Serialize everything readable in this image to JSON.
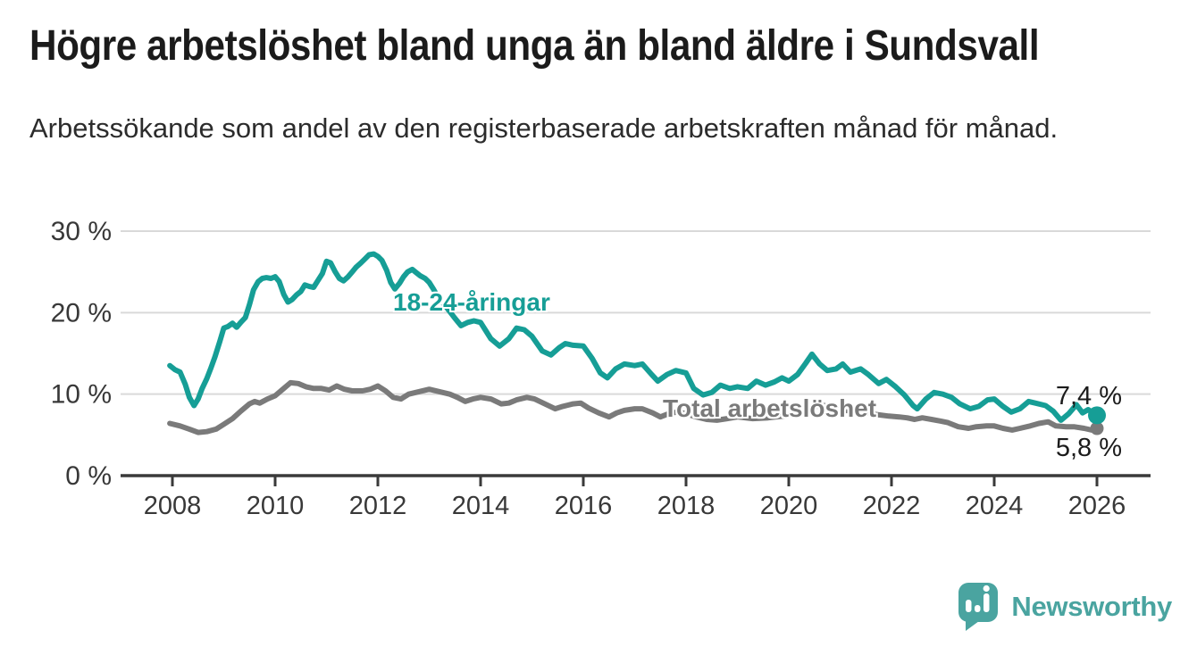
{
  "header": {
    "title": "Högre arbetslöshet bland unga än bland äldre i Sundsvall",
    "subtitle": "Arbetssökande som andel av den registerbaserade arbetskraften månad för månad."
  },
  "chart_data": {
    "type": "line",
    "title": "Högre arbetslöshet bland unga än bland äldre i Sundsvall",
    "subtitle": "Arbetssökande som andel av den registerbaserade arbetskraften månad för månad.",
    "xlabel": "",
    "ylabel": "",
    "unit": "%",
    "xlim": [
      2007.0,
      2027.0
    ],
    "ylim": [
      0,
      30
    ],
    "grid": "horizontal",
    "legend_position": "inline-labels",
    "x_ticks": [
      2008,
      2010,
      2012,
      2014,
      2016,
      2018,
      2020,
      2022,
      2024,
      2026
    ],
    "x_tick_labels": [
      "2008",
      "2010",
      "2012",
      "2014",
      "2016",
      "2018",
      "2020",
      "2022",
      "2024",
      "2026"
    ],
    "y_ticks": [
      0,
      10,
      20,
      30
    ],
    "y_tick_labels": [
      "0 %",
      "10 %",
      "20 %",
      "30 %"
    ],
    "colors": {
      "grid": "#d9d9d9",
      "axis": "#3a3a3a",
      "tick_text": "#383838",
      "value_text": "#1b1b1b"
    },
    "series": [
      {
        "name": "18-24-åringar",
        "color": "#169e96",
        "end_label": "7,4 %",
        "last_value": 7.4,
        "end_dot_radius": 10,
        "points": [
          [
            2007.95,
            13.5
          ],
          [
            2008.05,
            13.0
          ],
          [
            2008.15,
            12.7
          ],
          [
            2008.25,
            11.2
          ],
          [
            2008.33,
            9.6
          ],
          [
            2008.42,
            8.6
          ],
          [
            2008.5,
            9.4
          ],
          [
            2008.58,
            10.7
          ],
          [
            2008.67,
            11.9
          ],
          [
            2008.75,
            13.2
          ],
          [
            2008.83,
            14.6
          ],
          [
            2008.92,
            16.4
          ],
          [
            2009.0,
            18.1
          ],
          [
            2009.08,
            18.3
          ],
          [
            2009.17,
            18.7
          ],
          [
            2009.25,
            18.2
          ],
          [
            2009.33,
            18.8
          ],
          [
            2009.42,
            19.4
          ],
          [
            2009.5,
            21.0
          ],
          [
            2009.58,
            22.8
          ],
          [
            2009.67,
            23.8
          ],
          [
            2009.75,
            24.2
          ],
          [
            2009.83,
            24.3
          ],
          [
            2009.92,
            24.2
          ],
          [
            2010.0,
            24.4
          ],
          [
            2010.08,
            23.8
          ],
          [
            2010.17,
            22.2
          ],
          [
            2010.25,
            21.3
          ],
          [
            2010.33,
            21.6
          ],
          [
            2010.42,
            22.2
          ],
          [
            2010.5,
            22.6
          ],
          [
            2010.58,
            23.4
          ],
          [
            2010.67,
            23.2
          ],
          [
            2010.75,
            23.1
          ],
          [
            2010.83,
            23.9
          ],
          [
            2010.92,
            24.8
          ],
          [
            2011.0,
            26.3
          ],
          [
            2011.08,
            26.1
          ],
          [
            2011.17,
            25.0
          ],
          [
            2011.25,
            24.2
          ],
          [
            2011.33,
            23.9
          ],
          [
            2011.42,
            24.4
          ],
          [
            2011.5,
            25.0
          ],
          [
            2011.58,
            25.6
          ],
          [
            2011.67,
            26.1
          ],
          [
            2011.75,
            26.6
          ],
          [
            2011.83,
            27.1
          ],
          [
            2011.92,
            27.2
          ],
          [
            2012.0,
            26.9
          ],
          [
            2012.08,
            26.4
          ],
          [
            2012.17,
            25.2
          ],
          [
            2012.25,
            23.7
          ],
          [
            2012.33,
            22.9
          ],
          [
            2012.42,
            23.6
          ],
          [
            2012.5,
            24.4
          ],
          [
            2012.58,
            25.0
          ],
          [
            2012.67,
            25.3
          ],
          [
            2012.75,
            24.9
          ],
          [
            2012.83,
            24.5
          ],
          [
            2012.92,
            24.2
          ],
          [
            2013.0,
            23.7
          ],
          [
            2013.08,
            22.9
          ],
          [
            2013.17,
            21.9
          ],
          [
            2013.33,
            20.7
          ],
          [
            2013.5,
            19.3
          ],
          [
            2013.62,
            18.4
          ],
          [
            2013.75,
            18.8
          ],
          [
            2013.87,
            19.0
          ],
          [
            2014.0,
            18.8
          ],
          [
            2014.1,
            17.8
          ],
          [
            2014.2,
            16.8
          ],
          [
            2014.37,
            15.9
          ],
          [
            2014.55,
            16.8
          ],
          [
            2014.7,
            18.1
          ],
          [
            2014.85,
            17.9
          ],
          [
            2015.0,
            17.1
          ],
          [
            2015.2,
            15.3
          ],
          [
            2015.37,
            14.8
          ],
          [
            2015.53,
            15.7
          ],
          [
            2015.65,
            16.2
          ],
          [
            2015.8,
            16.0
          ],
          [
            2016.0,
            15.9
          ],
          [
            2016.17,
            14.4
          ],
          [
            2016.33,
            12.6
          ],
          [
            2016.47,
            12.0
          ],
          [
            2016.63,
            13.1
          ],
          [
            2016.8,
            13.7
          ],
          [
            2017.0,
            13.5
          ],
          [
            2017.15,
            13.7
          ],
          [
            2017.33,
            12.4
          ],
          [
            2017.45,
            11.6
          ],
          [
            2017.63,
            12.4
          ],
          [
            2017.8,
            12.9
          ],
          [
            2018.0,
            12.6
          ],
          [
            2018.15,
            10.7
          ],
          [
            2018.33,
            9.9
          ],
          [
            2018.5,
            10.2
          ],
          [
            2018.67,
            11.1
          ],
          [
            2018.85,
            10.7
          ],
          [
            2019.0,
            10.9
          ],
          [
            2019.2,
            10.7
          ],
          [
            2019.37,
            11.6
          ],
          [
            2019.55,
            11.1
          ],
          [
            2019.72,
            11.5
          ],
          [
            2019.87,
            12.0
          ],
          [
            2020.0,
            11.6
          ],
          [
            2020.17,
            12.4
          ],
          [
            2020.33,
            13.8
          ],
          [
            2020.45,
            14.9
          ],
          [
            2020.6,
            13.7
          ],
          [
            2020.75,
            12.9
          ],
          [
            2020.92,
            13.1
          ],
          [
            2021.05,
            13.7
          ],
          [
            2021.2,
            12.7
          ],
          [
            2021.4,
            13.1
          ],
          [
            2021.55,
            12.4
          ],
          [
            2021.75,
            11.3
          ],
          [
            2021.9,
            11.8
          ],
          [
            2022.08,
            10.9
          ],
          [
            2022.25,
            9.9
          ],
          [
            2022.42,
            8.6
          ],
          [
            2022.5,
            8.2
          ],
          [
            2022.67,
            9.4
          ],
          [
            2022.83,
            10.2
          ],
          [
            2023.0,
            10.0
          ],
          [
            2023.17,
            9.6
          ],
          [
            2023.33,
            8.8
          ],
          [
            2023.53,
            8.2
          ],
          [
            2023.7,
            8.5
          ],
          [
            2023.87,
            9.3
          ],
          [
            2024.0,
            9.4
          ],
          [
            2024.17,
            8.5
          ],
          [
            2024.33,
            7.8
          ],
          [
            2024.5,
            8.2
          ],
          [
            2024.67,
            9.1
          ],
          [
            2024.8,
            8.9
          ],
          [
            2025.0,
            8.6
          ],
          [
            2025.15,
            7.9
          ],
          [
            2025.3,
            6.8
          ],
          [
            2025.45,
            7.6
          ],
          [
            2025.6,
            8.7
          ],
          [
            2025.72,
            7.7
          ],
          [
            2025.83,
            8.1
          ],
          [
            2026.0,
            7.4
          ]
        ]
      },
      {
        "name": "Total arbetslöshet",
        "color": "#7a7a7a",
        "end_label": "5,8 %",
        "last_value": 5.8,
        "end_dot_radius": 7.5,
        "points": [
          [
            2007.95,
            6.4
          ],
          [
            2008.15,
            6.1
          ],
          [
            2008.33,
            5.7
          ],
          [
            2008.5,
            5.3
          ],
          [
            2008.67,
            5.4
          ],
          [
            2008.85,
            5.7
          ],
          [
            2009.0,
            6.3
          ],
          [
            2009.17,
            7.0
          ],
          [
            2009.33,
            7.9
          ],
          [
            2009.5,
            8.8
          ],
          [
            2009.6,
            9.1
          ],
          [
            2009.7,
            8.9
          ],
          [
            2009.85,
            9.4
          ],
          [
            2010.0,
            9.8
          ],
          [
            2010.15,
            10.6
          ],
          [
            2010.3,
            11.4
          ],
          [
            2010.45,
            11.3
          ],
          [
            2010.6,
            10.9
          ],
          [
            2010.75,
            10.7
          ],
          [
            2010.9,
            10.7
          ],
          [
            2011.05,
            10.5
          ],
          [
            2011.2,
            11.0
          ],
          [
            2011.35,
            10.6
          ],
          [
            2011.5,
            10.4
          ],
          [
            2011.7,
            10.4
          ],
          [
            2011.85,
            10.6
          ],
          [
            2012.0,
            11.0
          ],
          [
            2012.15,
            10.4
          ],
          [
            2012.3,
            9.6
          ],
          [
            2012.45,
            9.4
          ],
          [
            2012.6,
            10.0
          ],
          [
            2012.8,
            10.3
          ],
          [
            2013.0,
            10.6
          ],
          [
            2013.2,
            10.3
          ],
          [
            2013.4,
            10.0
          ],
          [
            2013.55,
            9.6
          ],
          [
            2013.7,
            9.1
          ],
          [
            2013.85,
            9.4
          ],
          [
            2014.0,
            9.6
          ],
          [
            2014.2,
            9.4
          ],
          [
            2014.4,
            8.8
          ],
          [
            2014.55,
            8.9
          ],
          [
            2014.7,
            9.3
          ],
          [
            2014.9,
            9.6
          ],
          [
            2015.05,
            9.4
          ],
          [
            2015.25,
            8.8
          ],
          [
            2015.45,
            8.2
          ],
          [
            2015.6,
            8.5
          ],
          [
            2015.8,
            8.8
          ],
          [
            2015.95,
            8.9
          ],
          [
            2016.1,
            8.3
          ],
          [
            2016.3,
            7.7
          ],
          [
            2016.5,
            7.2
          ],
          [
            2016.65,
            7.7
          ],
          [
            2016.8,
            8.0
          ],
          [
            2017.0,
            8.2
          ],
          [
            2017.15,
            8.2
          ],
          [
            2017.35,
            7.7
          ],
          [
            2017.5,
            7.2
          ],
          [
            2017.7,
            7.7
          ],
          [
            2017.85,
            7.8
          ],
          [
            2018.0,
            7.6
          ],
          [
            2018.2,
            7.2
          ],
          [
            2018.4,
            6.9
          ],
          [
            2018.6,
            6.8
          ],
          [
            2018.8,
            7.0
          ],
          [
            2019.0,
            7.2
          ],
          [
            2019.3,
            7.0
          ],
          [
            2019.6,
            7.1
          ],
          [
            2019.9,
            7.3
          ],
          [
            2020.2,
            7.8
          ],
          [
            2020.5,
            8.5
          ],
          [
            2020.7,
            8.6
          ],
          [
            2020.9,
            8.3
          ],
          [
            2021.1,
            8.0
          ],
          [
            2021.4,
            7.8
          ],
          [
            2021.7,
            7.5
          ],
          [
            2021.95,
            7.3
          ],
          [
            2022.15,
            7.2
          ],
          [
            2022.3,
            7.1
          ],
          [
            2022.45,
            6.9
          ],
          [
            2022.6,
            7.1
          ],
          [
            2022.78,
            6.9
          ],
          [
            2022.95,
            6.7
          ],
          [
            2023.1,
            6.5
          ],
          [
            2023.3,
            6.0
          ],
          [
            2023.5,
            5.8
          ],
          [
            2023.65,
            6.0
          ],
          [
            2023.85,
            6.1
          ],
          [
            2024.0,
            6.1
          ],
          [
            2024.17,
            5.8
          ],
          [
            2024.35,
            5.6
          ],
          [
            2024.5,
            5.8
          ],
          [
            2024.7,
            6.1
          ],
          [
            2024.87,
            6.4
          ],
          [
            2025.05,
            6.6
          ],
          [
            2025.2,
            6.1
          ],
          [
            2025.4,
            6.0
          ],
          [
            2025.55,
            6.0
          ],
          [
            2025.75,
            5.8
          ],
          [
            2025.9,
            5.6
          ],
          [
            2026.0,
            5.8
          ]
        ]
      }
    ]
  },
  "branding": {
    "name": "Newsworthy",
    "color": "#4aa4a0",
    "icon": "bar-chart-speech-bubble-icon"
  }
}
